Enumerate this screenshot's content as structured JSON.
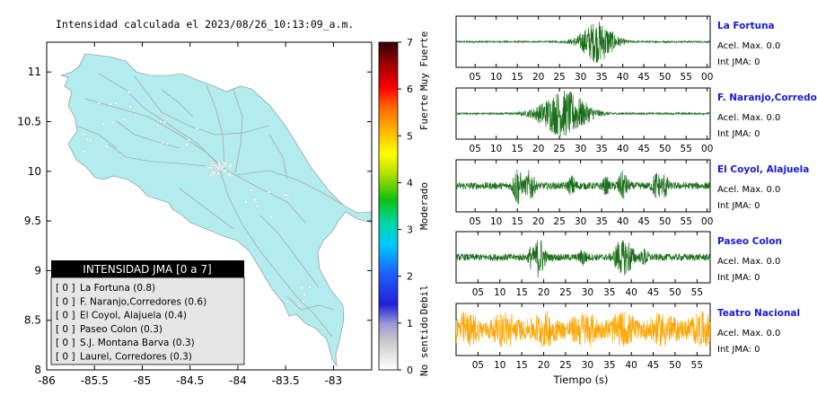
{
  "map": {
    "title": "Intensidad calculada el 2023/08/26_10:13:09_a.m.",
    "x_ticks": [
      "-86",
      "-85.5",
      "-85",
      "-84.5",
      "-84",
      "-83.5",
      "-83"
    ],
    "y_ticks": [
      "11",
      "10.5",
      "10",
      "9.5",
      "9",
      "8.5",
      "8"
    ],
    "land_color": "#b2ecee",
    "legend": {
      "title": "INTENSIDAD JMA [0 a 7]",
      "items": [
        {
          "level": "[ 0 ]",
          "station": "La Fortuna (0.8)"
        },
        {
          "level": "[ 0 ]",
          "station": "F. Naranjo,Corredores (0.6)"
        },
        {
          "level": "[ 0 ]",
          "station": "El Coyol, Alajuela (0.4)"
        },
        {
          "level": "[ 0 ]",
          "station": "Paseo Colon (0.3)"
        },
        {
          "level": "[ 0 ]",
          "station": "S.J. Montana Barva (0.3)"
        },
        {
          "level": "[ 0 ]",
          "station": "Laurel, Corredores (0.3)"
        }
      ]
    }
  },
  "colorbar": {
    "ticks": [
      "0",
      "1",
      "2",
      "3",
      "4",
      "5",
      "6",
      "7"
    ],
    "labels": [
      "No sentido",
      "Debil",
      "Moderado",
      "Fuerte",
      "Muy Fuerte"
    ]
  },
  "chart_data": [
    {
      "type": "map",
      "title": "Intensidad calculada el 2023/08/26_10:13:09_a.m.",
      "xlim": [
        -86,
        -82.6
      ],
      "ylim": [
        8,
        11.3
      ]
    },
    {
      "type": "colorbar",
      "range": [
        0,
        7
      ],
      "labels": [
        "No sentido",
        "Debil",
        "Moderado",
        "Fuerte",
        "Muy Fuerte"
      ]
    },
    {
      "type": "line",
      "xlabel": "Tiempo (s)",
      "series": [
        {
          "name": "La Fortuna",
          "color": "#1a6e1a",
          "x_ticks": [
            "05",
            "10",
            "15",
            "20",
            "25",
            "30",
            "35",
            "40",
            "45",
            "50",
            "55",
            "00"
          ],
          "peak_window": [
            29,
            40
          ],
          "info1": "Acel. Max. 0.0",
          "info2": "Int JMA: 0"
        },
        {
          "name": "F. Naranjo,Corredores",
          "color": "#1a6e1a",
          "x_ticks": [
            "05",
            "10",
            "15",
            "20",
            "25",
            "30",
            "35",
            "40",
            "45",
            "50",
            "55",
            "00"
          ],
          "peak_window": [
            21,
            33
          ],
          "info1": "Acel. Max. 0.0",
          "info2": "Int JMA: 0"
        },
        {
          "name": "El Coyol, Alajuela",
          "color": "#1a6e1a",
          "x_ticks": [
            "05",
            "10",
            "15",
            "20",
            "25",
            "30",
            "35",
            "40",
            "45",
            "50",
            "55",
            "00"
          ],
          "peak_window": [
            14,
            52
          ],
          "info1": "Acel. Max. 0.0",
          "info2": "Int JMA: 0"
        },
        {
          "name": "Paseo Colon",
          "color": "#1a6e1a",
          "x_ticks": [
            "05",
            "10",
            "15",
            "20",
            "25",
            "30",
            "35",
            "40",
            "45",
            "50",
            "55"
          ],
          "peak_window": [
            16,
            45
          ],
          "info1": "Acel. Max. 0.0",
          "info2": "Int JMA: 0"
        },
        {
          "name": "Teatro Nacional",
          "color": "#ffa500",
          "x_ticks": [
            "05",
            "10",
            "15",
            "20",
            "25",
            "30",
            "35",
            "40",
            "45",
            "50",
            "55"
          ],
          "peak_window": [
            0,
            58
          ],
          "info1": "Acel. Max. 0.0",
          "info2": "Int JMA: 0"
        }
      ]
    }
  ]
}
